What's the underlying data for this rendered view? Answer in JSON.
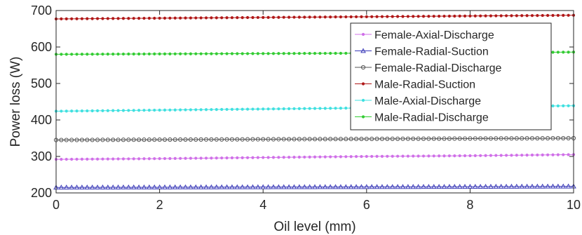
{
  "chart_data": {
    "type": "line",
    "title": "",
    "xlabel": "Oil level (mm)",
    "ylabel": "Power loss (W)",
    "xlim": [
      0,
      10
    ],
    "ylim": [
      200,
      700
    ],
    "xticks": [
      0,
      2,
      4,
      6,
      8,
      10
    ],
    "yticks": [
      200,
      300,
      400,
      500,
      600,
      700
    ],
    "x": [
      0,
      2,
      4,
      6,
      8,
      10
    ],
    "grid": false,
    "legend_position": "top-right",
    "series": [
      {
        "name": "Female-Axial-Discharge",
        "color": "#d070e8",
        "marker": "dot",
        "values": [
          292,
          294,
          297,
          300,
          302,
          305
        ]
      },
      {
        "name": "Female-Radial-Suction",
        "color": "#3a3ab8",
        "marker": "triangle",
        "values": [
          215,
          215.5,
          216,
          216.5,
          217,
          218
        ]
      },
      {
        "name": "Female-Radial-Discharge",
        "color": "#555555",
        "marker": "circle",
        "values": [
          345,
          346,
          347,
          348,
          349,
          350
        ]
      },
      {
        "name": "Male-Radial-Suction",
        "color": "#b01818",
        "marker": "dot",
        "values": [
          677,
          679,
          681,
          683,
          685,
          687
        ]
      },
      {
        "name": "Male-Axial-Discharge",
        "color": "#40e0e0",
        "marker": "dot",
        "values": [
          424,
          427,
          430,
          433,
          436,
          439
        ]
      },
      {
        "name": "Male-Radial-Discharge",
        "color": "#33cc33",
        "marker": "dot",
        "values": [
          580,
          581,
          582,
          583,
          584,
          586
        ]
      }
    ]
  }
}
